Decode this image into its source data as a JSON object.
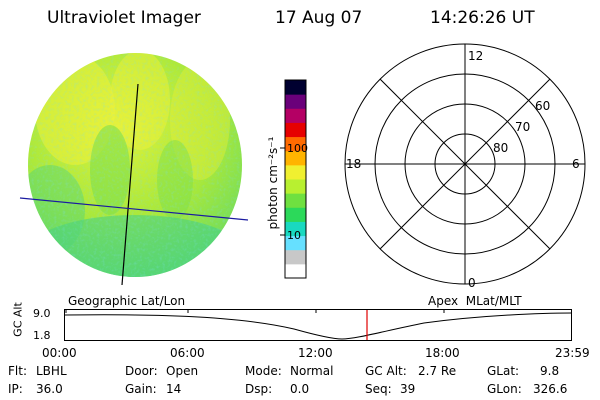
{
  "header": {
    "instrument": "Ultraviolet Imager",
    "date": "17 Aug 07",
    "time": "14:26:26 UT"
  },
  "colorbar": {
    "unit_label": "photon cm⁻²s⁻¹",
    "ticks": [
      {
        "label": "100",
        "value": 100
      },
      {
        "label": "10",
        "value": 10
      }
    ],
    "colors": [
      "#ffffff",
      "#c8c8c8",
      "#66e0ff",
      "#19d9c0",
      "#2cd95a",
      "#6fe040",
      "#b8f030",
      "#f0f030",
      "#ffb400",
      "#ff6a00",
      "#e60000",
      "#b40064",
      "#6a007a",
      "#000030"
    ]
  },
  "polar": {
    "mlt_labels": {
      "top": "12",
      "right": "6",
      "bottom": "0",
      "left": "18"
    },
    "lat_labels": [
      "60",
      "70",
      "80"
    ]
  },
  "coordinate_labels": {
    "left": "Geographic Lat/Lon",
    "right": "Apex  MLat/MLT"
  },
  "timeline": {
    "axis_label": "GC Alt",
    "y_ticks": [
      "9.0",
      "1.8"
    ],
    "x_ticks": [
      "00:00",
      "06:00",
      "12:00",
      "18:00",
      "23:59"
    ],
    "current_marker_color": "#e00000"
  },
  "status": {
    "row1": [
      {
        "key": "Flt:",
        "value": "LBHL"
      },
      {
        "key": "Door:",
        "value": "Open"
      },
      {
        "key": "Mode:",
        "value": "Normal"
      },
      {
        "key": "GC Alt:",
        "value": "2.7 Re"
      },
      {
        "key": "GLat:",
        "value": "9.8"
      }
    ],
    "row2": [
      {
        "key": "IP:",
        "value": "36.0"
      },
      {
        "key": "Gain:",
        "value": "14"
      },
      {
        "key": "Dsp:",
        "value": "0.0"
      },
      {
        "key": "Seq:",
        "value": "39"
      },
      {
        "key": "GLon:",
        "value": "326.6"
      }
    ]
  }
}
